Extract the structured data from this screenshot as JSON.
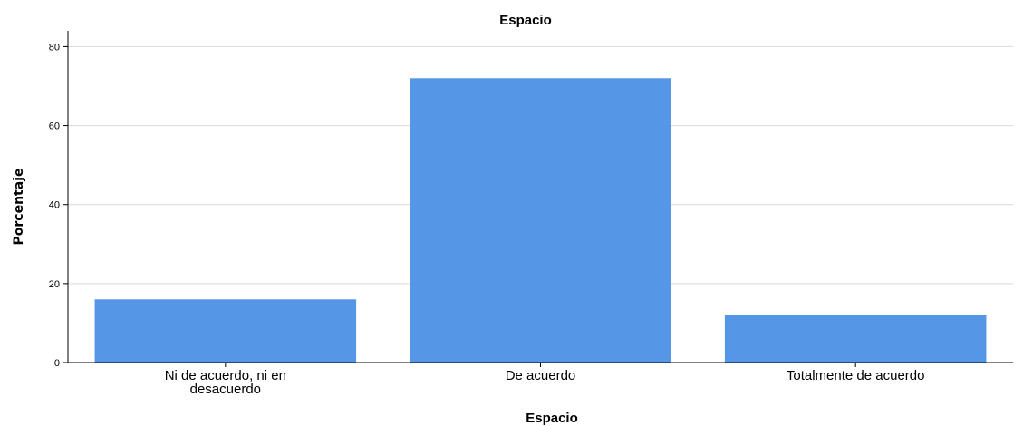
{
  "chart_data": {
    "type": "bar",
    "title": "Espacio",
    "xlabel": "Espacio",
    "ylabel": "Porcentaje",
    "categories": [
      [
        "Ni de acuerdo, ni en",
        "desacuerdo"
      ],
      [
        "De acuerdo"
      ],
      [
        "Totalmente de acuerdo"
      ]
    ],
    "values": [
      16,
      72,
      12
    ],
    "ylim": [
      0,
      84
    ],
    "yticks": [
      0,
      20,
      40,
      60,
      80
    ],
    "grid": true,
    "bar_color": "#5596e6"
  }
}
